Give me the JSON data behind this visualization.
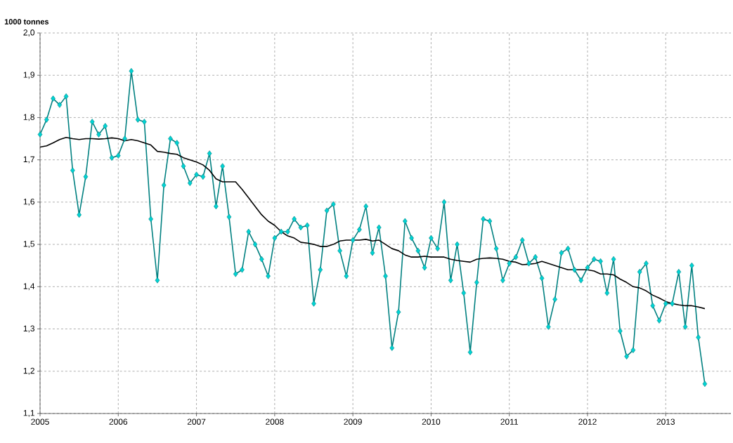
{
  "chart_data": {
    "type": "line",
    "ylabel": "1000 tonnes",
    "x": [
      "2005-01",
      "2005-02",
      "2005-03",
      "2005-04",
      "2005-05",
      "2005-06",
      "2005-07",
      "2005-08",
      "2005-09",
      "2005-10",
      "2005-11",
      "2005-12",
      "2006-01",
      "2006-02",
      "2006-03",
      "2006-04",
      "2006-05",
      "2006-06",
      "2006-07",
      "2006-08",
      "2006-09",
      "2006-10",
      "2006-11",
      "2006-12",
      "2007-01",
      "2007-02",
      "2007-03",
      "2007-04",
      "2007-05",
      "2007-06",
      "2007-07",
      "2007-08",
      "2007-09",
      "2007-10",
      "2007-11",
      "2007-12",
      "2008-01",
      "2008-02",
      "2008-03",
      "2008-04",
      "2008-05",
      "2008-06",
      "2008-07",
      "2008-08",
      "2008-09",
      "2008-10",
      "2008-11",
      "2008-12",
      "2009-01",
      "2009-02",
      "2009-03",
      "2009-04",
      "2009-05",
      "2009-06",
      "2009-07",
      "2009-08",
      "2009-09",
      "2009-10",
      "2009-11",
      "2009-12",
      "2010-01",
      "2010-02",
      "2010-03",
      "2010-04",
      "2010-05",
      "2010-06",
      "2010-07",
      "2010-08",
      "2010-09",
      "2010-10",
      "2010-11",
      "2010-12",
      "2011-01",
      "2011-02",
      "2011-03",
      "2011-04",
      "2011-05",
      "2011-06",
      "2011-07",
      "2011-08",
      "2011-09",
      "2011-10",
      "2011-11",
      "2011-12",
      "2012-01",
      "2012-02",
      "2012-03",
      "2012-04",
      "2012-05",
      "2012-06",
      "2012-07",
      "2012-08",
      "2012-09",
      "2012-10",
      "2012-11",
      "2012-12",
      "2013-01",
      "2013-02",
      "2013-03",
      "2013-04",
      "2013-05",
      "2013-06",
      "2013-07"
    ],
    "series": [
      {
        "color": "#008080",
        "marker": "diamond",
        "values": [
          1.76,
          1.795,
          1.845,
          1.83,
          1.85,
          1.675,
          1.57,
          1.66,
          1.79,
          1.76,
          1.78,
          1.705,
          1.71,
          1.75,
          1.91,
          1.795,
          1.79,
          1.56,
          1.415,
          1.64,
          1.75,
          1.74,
          1.685,
          1.645,
          1.665,
          1.66,
          1.715,
          1.59,
          1.685,
          1.565,
          1.43,
          1.44,
          1.53,
          1.5,
          1.465,
          1.425,
          1.515,
          1.53,
          1.53,
          1.56,
          1.54,
          1.545,
          1.36,
          1.44,
          1.58,
          1.595,
          1.485,
          1.425,
          1.51,
          1.535,
          1.59,
          1.48,
          1.54,
          1.425,
          1.255,
          1.34,
          1.555,
          1.515,
          1.485,
          1.445,
          1.515,
          1.49,
          1.6,
          1.415,
          1.5,
          1.385,
          1.245,
          1.41,
          1.56,
          1.555,
          1.49,
          1.415,
          1.455,
          1.47,
          1.51,
          1.455,
          1.47,
          1.42,
          1.305,
          1.37,
          1.48,
          1.49,
          1.44,
          1.415,
          1.445,
          1.465,
          1.46,
          1.385,
          1.465,
          1.295,
          1.235,
          1.25,
          1.435,
          1.455,
          1.355,
          1.32,
          1.36,
          1.36,
          1.435,
          1.305,
          1.45,
          1.28,
          1.17
        ]
      },
      {
        "color": "#000000",
        "marker": "none",
        "values": [
          1.73,
          1.733,
          1.74,
          1.748,
          1.753,
          1.75,
          1.748,
          1.75,
          1.75,
          1.749,
          1.75,
          1.752,
          1.75,
          1.745,
          1.748,
          1.745,
          1.74,
          1.735,
          1.72,
          1.718,
          1.715,
          1.713,
          1.705,
          1.7,
          1.695,
          1.688,
          1.675,
          1.655,
          1.648,
          1.648,
          1.648,
          1.63,
          1.61,
          1.59,
          1.57,
          1.555,
          1.545,
          1.53,
          1.52,
          1.515,
          1.505,
          1.503,
          1.5,
          1.495,
          1.495,
          1.5,
          1.508,
          1.51,
          1.51,
          1.51,
          1.512,
          1.508,
          1.51,
          1.5,
          1.49,
          1.485,
          1.475,
          1.47,
          1.47,
          1.472,
          1.47,
          1.47,
          1.47,
          1.465,
          1.462,
          1.46,
          1.458,
          1.465,
          1.467,
          1.468,
          1.467,
          1.465,
          1.46,
          1.458,
          1.452,
          1.453,
          1.455,
          1.46,
          1.455,
          1.45,
          1.445,
          1.44,
          1.44,
          1.44,
          1.44,
          1.437,
          1.43,
          1.43,
          1.428,
          1.418,
          1.41,
          1.4,
          1.397,
          1.39,
          1.38,
          1.373,
          1.365,
          1.36,
          1.357,
          1.355,
          1.355,
          1.352,
          1.348
        ]
      }
    ],
    "xlim": [
      "2005-01",
      "2013-11"
    ],
    "xticks": [
      "2005",
      "2006",
      "2007",
      "2008",
      "2009",
      "2010",
      "2011",
      "2012",
      "2013"
    ],
    "ylim": [
      1.1,
      2.0
    ],
    "yticks": [
      {
        "value": 1.1,
        "label": "1,1"
      },
      {
        "value": 1.2,
        "label": "1,2"
      },
      {
        "value": 1.3,
        "label": "1,3"
      },
      {
        "value": 1.4,
        "label": "1,4"
      },
      {
        "value": 1.5,
        "label": "1,5"
      },
      {
        "value": 1.6,
        "label": "1,6"
      },
      {
        "value": 1.7,
        "label": "1,7"
      },
      {
        "value": 1.8,
        "label": "1,8"
      },
      {
        "value": 1.9,
        "label": "1,9"
      },
      {
        "value": 2.0,
        "label": "2,0"
      }
    ],
    "grid": true,
    "line_style": "solid"
  }
}
